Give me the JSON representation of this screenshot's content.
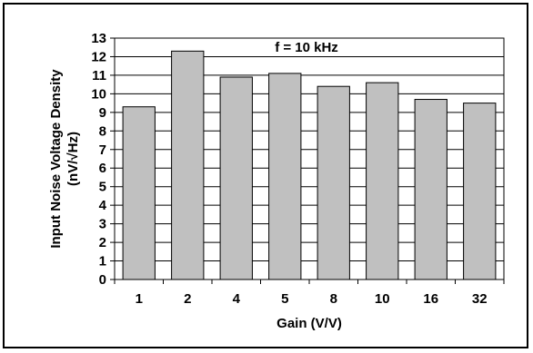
{
  "chart_data": {
    "type": "bar",
    "title": "",
    "annotation": "f = 10 kHz",
    "xlabel": "Gain (V/V)",
    "ylabel": "Input Noise Voltage Density",
    "ylabel_unit": "(nV/√Hz)",
    "categories": [
      "1",
      "2",
      "4",
      "5",
      "8",
      "10",
      "16",
      "32"
    ],
    "values": [
      9.3,
      12.3,
      10.9,
      11.1,
      10.4,
      10.6,
      9.7,
      9.5
    ],
    "ylim": [
      0,
      13
    ],
    "yticks": [
      "0",
      "1",
      "2",
      "3",
      "4",
      "5",
      "6",
      "7",
      "8",
      "9",
      "10",
      "11",
      "12",
      "13"
    ],
    "grid": true,
    "legend": "none",
    "colors": {
      "bar_fill": "#c0c0c0",
      "bar_stroke": "#000000",
      "grid": "#000000"
    }
  }
}
